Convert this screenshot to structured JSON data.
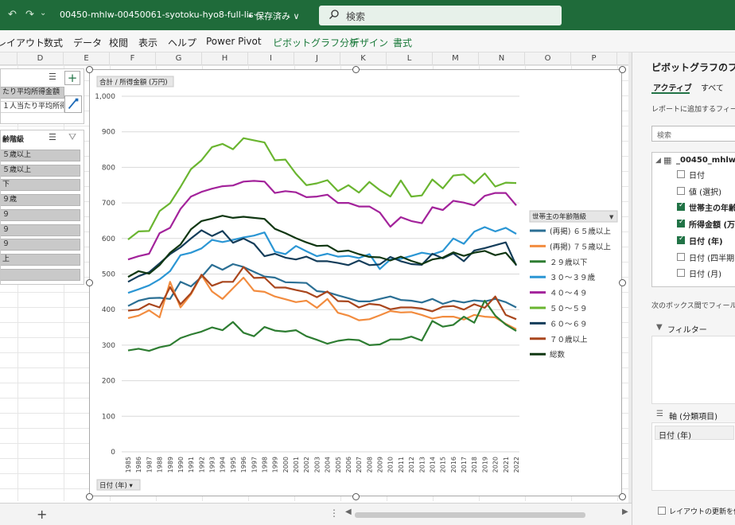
{
  "titlebar": {
    "filename": "00450-mhlw-00450061-syotoku-hyo8-full-lis···",
    "save_status": "• 保存済み ∨",
    "search_placeholder": "検索"
  },
  "ribbon_tabs": [
    {
      "label": "レイアウト",
      "contextual": false
    },
    {
      "label": "数式",
      "contextual": false
    },
    {
      "label": "データ",
      "contextual": false
    },
    {
      "label": "校閲",
      "contextual": false
    },
    {
      "label": "表示",
      "contextual": false
    },
    {
      "label": "ヘルプ",
      "contextual": false
    },
    {
      "label": "Power Pivot",
      "contextual": false
    },
    {
      "label": "ピボットグラフ分析",
      "contextual": true
    },
    {
      "label": "デザイン",
      "contextual": true
    },
    {
      "label": "書式",
      "contextual": true
    }
  ],
  "columns": [
    "D",
    "E",
    "F",
    "G",
    "H",
    "I",
    "J",
    "K",
    "L",
    "M",
    "N",
    "O",
    "P"
  ],
  "slicer1": {
    "items": [
      "たり平均所得金額",
      "１人当たり平均所得"
    ]
  },
  "slicer2": {
    "header": "齢階級",
    "items": [
      "５歳以上",
      "５歳以上",
      "下",
      "９歳",
      "９",
      "９",
      "９",
      "上",
      ""
    ]
  },
  "chart": {
    "value_field_button": "合計 / 所得金額 (万円)",
    "axis_field_button": "日付 (年) ▾",
    "legend_field_button": "世帯主の年齢階級"
  },
  "chart_data": {
    "type": "line",
    "ylim": [
      0,
      1000
    ],
    "yticks": [
      0,
      100,
      200,
      300,
      400,
      500,
      600,
      700,
      800,
      900,
      1000
    ],
    "ytick_labels": [
      "0",
      "100",
      "200",
      "300",
      "400",
      "500",
      "600",
      "700",
      "800",
      "900",
      "1,000"
    ],
    "categories": [
      "1985",
      "1986",
      "1987",
      "1988",
      "1989",
      "1990",
      "1991",
      "1992",
      "1993",
      "1994",
      "1995",
      "1996",
      "1997",
      "1998",
      "1999",
      "2000",
      "2001",
      "2002",
      "2003",
      "2004",
      "2005",
      "2006",
      "2007",
      "2008",
      "2009",
      "2010",
      "2011",
      "2012",
      "2013",
      "2014",
      "2015",
      "2016",
      "2017",
      "2018",
      "2019",
      "2020",
      "2021",
      "2022"
    ],
    "legend_position": "right",
    "series": [
      {
        "name": "(再掲) ６５歳以上",
        "color": "#2b6f94",
        "values": [
          410,
          425,
          432,
          433,
          430,
          478,
          465,
          492,
          526,
          512,
          528,
          520,
          506,
          493,
          490,
          477,
          476,
          475,
          452,
          449,
          440,
          432,
          423,
          423,
          430,
          437,
          427,
          425,
          420,
          430,
          416,
          425,
          420,
          426,
          423,
          430,
          421,
          406
        ]
      },
      {
        "name": "(再掲) ７５歳以上",
        "color": "#f28c3f",
        "values": [
          376,
          383,
          398,
          378,
          478,
          406,
          443,
          497,
          451,
          430,
          460,
          490,
          453,
          450,
          437,
          429,
          421,
          425,
          405,
          430,
          391,
          383,
          370,
          373,
          384,
          396,
          392,
          393,
          385,
          375,
          380,
          380,
          372,
          385,
          380,
          378,
          360,
          345
        ]
      },
      {
        "name": "２９歳以下",
        "color": "#2e7d32",
        "values": [
          285,
          290,
          284,
          294,
          300,
          320,
          330,
          338,
          350,
          342,
          365,
          335,
          325,
          351,
          341,
          338,
          342,
          325,
          315,
          304,
          312,
          316,
          314,
          300,
          302,
          316,
          316,
          324,
          313,
          368,
          352,
          357,
          380,
          363,
          425,
          383,
          358,
          340
        ]
      },
      {
        "name": "３０～３９歳",
        "color": "#2b96d4",
        "values": [
          447,
          457,
          468,
          485,
          508,
          553,
          560,
          572,
          596,
          590,
          596,
          603,
          608,
          617,
          563,
          556,
          579,
          564,
          550,
          557,
          549,
          551,
          545,
          556,
          514,
          541,
          543,
          551,
          560,
          555,
          565,
          600,
          585,
          619,
          632,
          620,
          630,
          613
        ]
      },
      {
        "name": "４０～４９",
        "color": "#a3239b",
        "values": [
          541,
          550,
          557,
          615,
          630,
          683,
          718,
          731,
          740,
          747,
          749,
          760,
          762,
          760,
          728,
          733,
          730,
          716,
          718,
          723,
          700,
          700,
          690,
          690,
          673,
          633,
          660,
          649,
          643,
          688,
          680,
          706,
          701,
          693,
          720,
          728,
          728,
          693
        ]
      },
      {
        "name": "５０～５９",
        "color": "#6ab530",
        "values": [
          597,
          620,
          621,
          677,
          699,
          745,
          795,
          820,
          857,
          866,
          851,
          882,
          876,
          870,
          820,
          822,
          782,
          750,
          755,
          764,
          733,
          750,
          729,
          759,
          736,
          718,
          763,
          718,
          721,
          766,
          741,
          777,
          780,
          755,
          783,
          746,
          757,
          756
        ]
      },
      {
        "name": "６０～６９",
        "color": "#143d5a",
        "values": [
          478,
          494,
          505,
          530,
          556,
          575,
          600,
          623,
          607,
          621,
          588,
          600,
          585,
          550,
          557,
          546,
          541,
          549,
          536,
          536,
          531,
          525,
          538,
          525,
          527,
          548,
          536,
          528,
          526,
          557,
          544,
          558,
          536,
          566,
          573,
          581,
          589,
          524
        ]
      },
      {
        "name": "７０歳以上",
        "color": "#a9461d",
        "values": [
          397,
          400,
          416,
          406,
          463,
          415,
          446,
          498,
          467,
          478,
          478,
          520,
          489,
          490,
          462,
          462,
          455,
          449,
          435,
          451,
          424,
          423,
          406,
          416,
          413,
          401,
          406,
          406,
          403,
          395,
          408,
          410,
          400,
          415,
          405,
          437,
          385,
          373
        ]
      },
      {
        "name": "総数",
        "color": "#103712",
        "values": [
          492,
          508,
          501,
          525,
          560,
          583,
          626,
          649,
          656,
          664,
          658,
          661,
          658,
          655,
          627,
          615,
          601,
          589,
          579,
          580,
          563,
          566,
          556,
          548,
          547,
          538,
          549,
          537,
          528,
          541,
          546,
          561,
          551,
          560,
          565,
          553,
          560,
          526
        ]
      }
    ]
  },
  "right_pane": {
    "title": "ピボットグラフのフィー",
    "tab_active": "アクティブ",
    "tab_all": "すべて",
    "choose_label": "レポートに追加するフィール",
    "search_placeholder": "検索",
    "table_name": "_00450_mhlw",
    "fields": [
      {
        "label": "日付",
        "checked": false,
        "bold": false
      },
      {
        "label": "値 (選択)",
        "checked": false,
        "bold": false
      },
      {
        "label": "世帯主の年齢",
        "checked": true,
        "bold": true
      },
      {
        "label": "所得金額 (万",
        "checked": true,
        "bold": true
      },
      {
        "label": "日付 (年)",
        "checked": true,
        "bold": true
      },
      {
        "label": "日付 (四半期",
        "checked": false,
        "bold": false
      },
      {
        "label": "日付 (月)",
        "checked": false,
        "bold": false
      }
    ],
    "drag_label": "次のボックス間でフィールド",
    "filter_label": "フィルター",
    "axis_label": "軸 (分類項目)",
    "axis_item": "日付 (年)",
    "defer_label": "レイアウトの更新を保"
  },
  "statusbar": {
    "add_sheet": "+",
    "dots": "⋮"
  }
}
